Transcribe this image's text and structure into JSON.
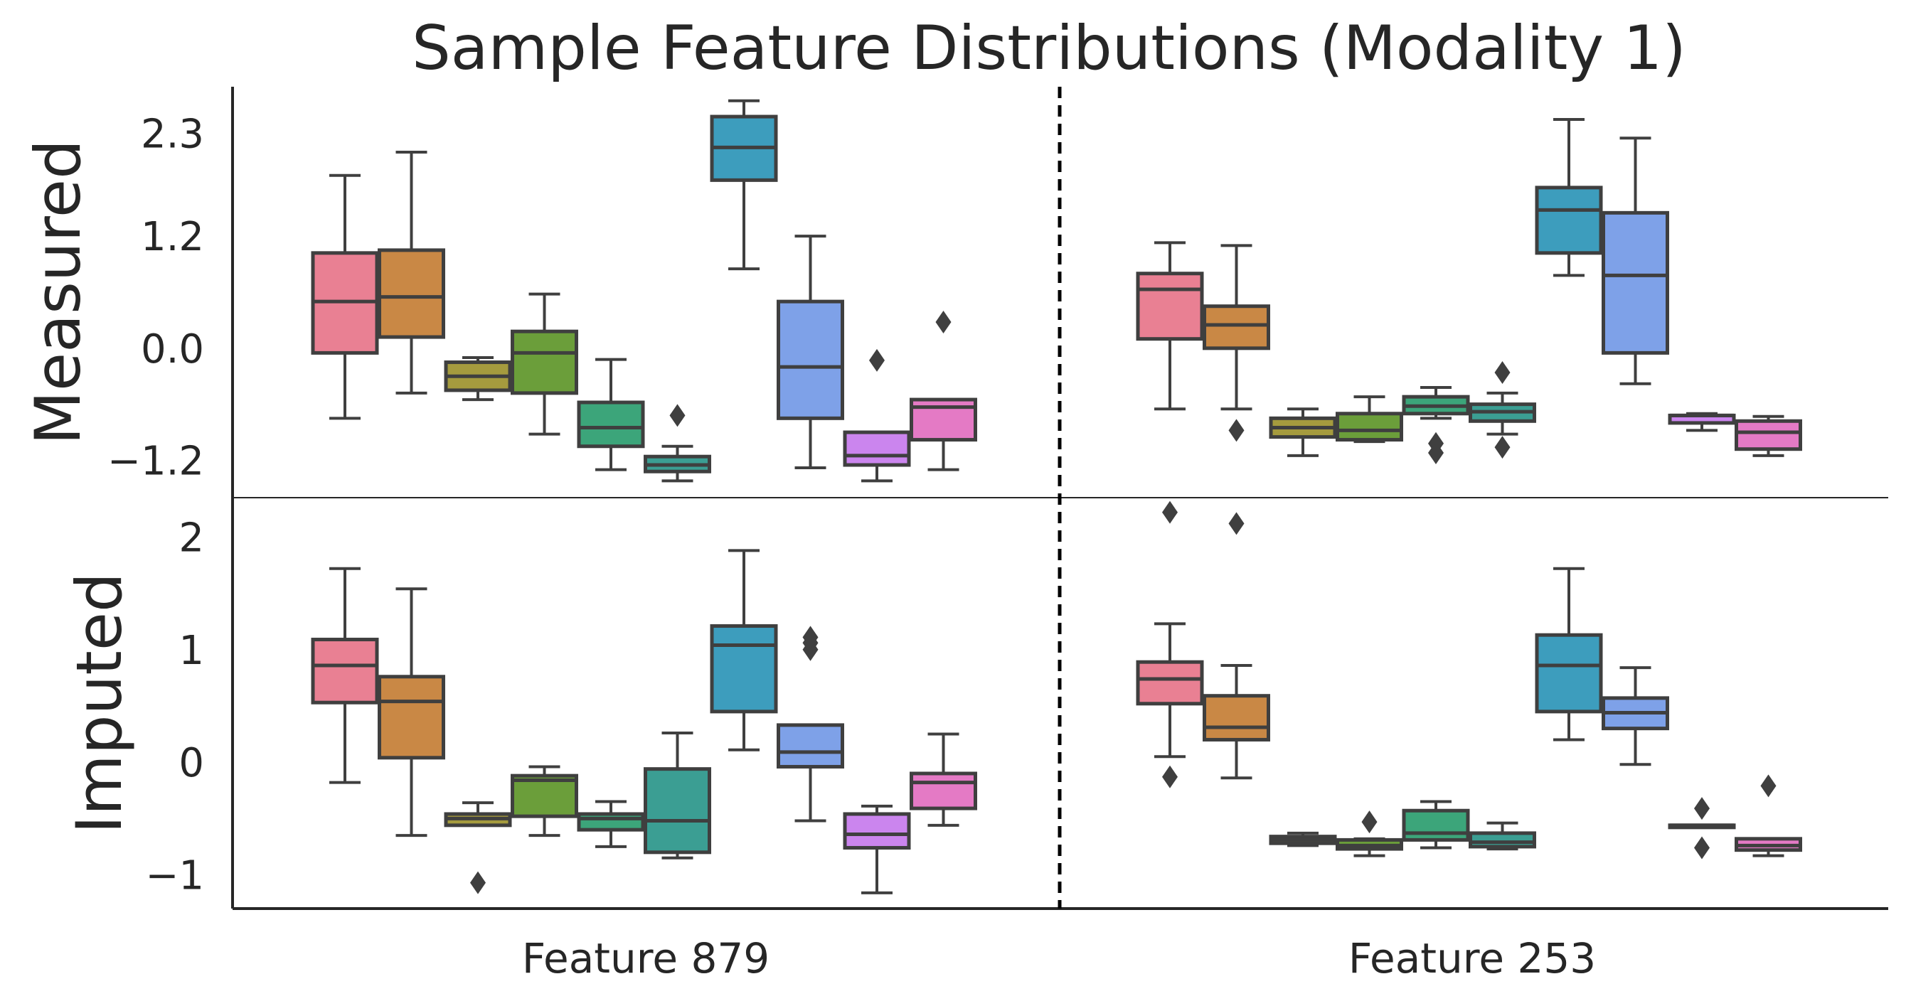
{
  "chart_data": {
    "type": "box",
    "title": "Sample Feature Distributions (Modality 1)",
    "categories": [
      "Feature 879",
      "Feature 253"
    ],
    "separator": "dashed vertical line between features",
    "grid": false,
    "box_colors": [
      "#e98093",
      "#c98845",
      "#a59b3e",
      "#6b9e3a",
      "#3ca57a",
      "#3b9e93",
      "#3d9dbd",
      "#7ea1e8",
      "#cb85ee",
      "#e47ac5"
    ],
    "panels": [
      {
        "ylabel": "Measured",
        "yticks": [
          2.3,
          1.2,
          0.0,
          -1.2
        ],
        "ytick_labels": [
          "2.3",
          "1.2",
          "0.0",
          "−1.2"
        ],
        "ylim": [
          -1.6,
          2.8
        ],
        "groups": [
          {
            "category": "Feature 879",
            "boxes": [
              {
                "whislo": -0.75,
                "q1": -0.05,
                "med": 0.5,
                "q3": 1.02,
                "whishi": 1.85,
                "fliers": []
              },
              {
                "whislo": -0.48,
                "q1": 0.12,
                "med": 0.55,
                "q3": 1.05,
                "whishi": 2.1,
                "fliers": []
              },
              {
                "whislo": -0.55,
                "q1": -0.45,
                "med": -0.3,
                "q3": -0.15,
                "whishi": -0.1,
                "fliers": []
              },
              {
                "whislo": -0.92,
                "q1": -0.48,
                "med": -0.05,
                "q3": 0.18,
                "whishi": 0.58,
                "fliers": []
              },
              {
                "whislo": -1.3,
                "q1": -1.05,
                "med": -0.85,
                "q3": -0.58,
                "whishi": -0.12,
                "fliers": []
              },
              {
                "whislo": -1.42,
                "q1": -1.32,
                "med": -1.25,
                "q3": -1.16,
                "whishi": -1.05,
                "fliers": [
                  -0.72
                ]
              },
              {
                "whislo": 0.85,
                "q1": 1.8,
                "med": 2.15,
                "q3": 2.48,
                "whishi": 2.65,
                "fliers": []
              },
              {
                "whislo": -1.28,
                "q1": -0.75,
                "med": -0.2,
                "q3": 0.5,
                "whishi": 1.2,
                "fliers": []
              },
              {
                "whislo": -1.42,
                "q1": -1.25,
                "med": -1.15,
                "q3": -0.9,
                "whishi": -0.9,
                "fliers": [
                  -0.13
                ]
              },
              {
                "whislo": -1.3,
                "q1": -0.98,
                "med": -0.63,
                "q3": -0.55,
                "whishi": -0.55,
                "fliers": [
                  0.28
                ]
              }
            ]
          },
          {
            "category": "Feature 253",
            "boxes": [
              {
                "whislo": -0.65,
                "q1": 0.1,
                "med": 0.63,
                "q3": 0.8,
                "whishi": 1.13,
                "fliers": []
              },
              {
                "whislo": -0.65,
                "q1": 0.0,
                "med": 0.25,
                "q3": 0.45,
                "whishi": 1.1,
                "fliers": [
                  -0.88
                ]
              },
              {
                "whislo": -1.15,
                "q1": -0.95,
                "med": -0.85,
                "q3": -0.75,
                "whishi": -0.65,
                "fliers": []
              },
              {
                "whislo": -1.0,
                "q1": -0.98,
                "med": -0.88,
                "q3": -0.7,
                "whishi": -0.52,
                "fliers": []
              },
              {
                "whislo": -0.75,
                "q1": -0.7,
                "med": -0.62,
                "q3": -0.52,
                "whishi": -0.42,
                "fliers": [
                  -1.02,
                  -1.12
                ]
              },
              {
                "whislo": -0.92,
                "q1": -0.78,
                "med": -0.68,
                "q3": -0.6,
                "whishi": -0.48,
                "fliers": [
                  -0.26,
                  -1.06
                ]
              },
              {
                "whislo": 0.78,
                "q1": 1.02,
                "med": 1.48,
                "q3": 1.72,
                "whishi": 2.45,
                "fliers": []
              },
              {
                "whislo": -0.38,
                "q1": -0.05,
                "med": 0.78,
                "q3": 1.45,
                "whishi": 2.25,
                "fliers": []
              },
              {
                "whislo": -0.88,
                "q1": -0.8,
                "med": -0.72,
                "q3": -0.72,
                "whishi": -0.7,
                "fliers": []
              },
              {
                "whislo": -1.15,
                "q1": -1.08,
                "med": -0.9,
                "q3": -0.78,
                "whishi": -0.73,
                "fliers": []
              }
            ]
          }
        ]
      },
      {
        "ylabel": "Imputed",
        "yticks": [
          2,
          1,
          0,
          -1
        ],
        "ytick_labels": [
          "2",
          "1",
          "0",
          "−1"
        ],
        "ylim": [
          -1.3,
          2.35
        ],
        "groups": [
          {
            "category": "Feature 879",
            "boxes": [
              {
                "whislo": -0.18,
                "q1": 0.53,
                "med": 0.86,
                "q3": 1.09,
                "whishi": 1.72,
                "fliers": []
              },
              {
                "whislo": -0.65,
                "q1": 0.04,
                "med": 0.54,
                "q3": 0.76,
                "whishi": 1.54,
                "fliers": []
              },
              {
                "whislo": -0.56,
                "q1": -0.56,
                "med": -0.5,
                "q3": -0.46,
                "whishi": -0.36,
                "fliers": [
                  -1.07
                ]
              },
              {
                "whislo": -0.65,
                "q1": -0.48,
                "med": -0.16,
                "q3": -0.12,
                "whishi": -0.04,
                "fliers": []
              },
              {
                "whislo": -0.75,
                "q1": -0.6,
                "med": -0.5,
                "q3": -0.46,
                "whishi": -0.35,
                "fliers": []
              },
              {
                "whislo": -0.85,
                "q1": -0.8,
                "med": -0.52,
                "q3": -0.06,
                "whishi": 0.26,
                "fliers": []
              },
              {
                "whislo": 0.11,
                "q1": 0.45,
                "med": 1.04,
                "q3": 1.21,
                "whishi": 1.88,
                "fliers": []
              },
              {
                "whislo": -0.52,
                "q1": -0.04,
                "med": 0.09,
                "q3": 0.33,
                "whishi": 0.33,
                "fliers": [
                  1.0,
                  1.06,
                  1.11
                ]
              },
              {
                "whislo": -1.16,
                "q1": -0.76,
                "med": -0.64,
                "q3": -0.46,
                "whishi": -0.39,
                "fliers": []
              },
              {
                "whislo": -0.56,
                "q1": -0.41,
                "med": -0.18,
                "q3": -0.1,
                "whishi": 0.25,
                "fliers": []
              }
            ]
          },
          {
            "category": "Feature 253",
            "boxes": [
              {
                "whislo": 0.05,
                "q1": 0.52,
                "med": 0.74,
                "q3": 0.89,
                "whishi": 1.23,
                "fliers": [
                  2.22,
                  -0.13
                ]
              },
              {
                "whislo": -0.14,
                "q1": 0.2,
                "med": 0.31,
                "q3": 0.59,
                "whishi": 0.86,
                "fliers": [
                  2.12
                ]
              },
              {
                "whislo": -0.74,
                "q1": -0.72,
                "med": -0.69,
                "q3": -0.66,
                "whishi": -0.63,
                "fliers": []
              },
              {
                "whislo": -0.83,
                "q1": -0.77,
                "med": -0.74,
                "q3": -0.69,
                "whishi": -0.68,
                "fliers": [
                  -0.53
                ]
              },
              {
                "whislo": -0.76,
                "q1": -0.69,
                "med": -0.63,
                "q3": -0.43,
                "whishi": -0.35,
                "fliers": []
              },
              {
                "whislo": -0.77,
                "q1": -0.75,
                "med": -0.71,
                "q3": -0.63,
                "whishi": -0.54,
                "fliers": []
              },
              {
                "whislo": 0.2,
                "q1": 0.45,
                "med": 0.86,
                "q3": 1.13,
                "whishi": 1.72,
                "fliers": []
              },
              {
                "whislo": -0.02,
                "q1": 0.3,
                "med": 0.44,
                "q3": 0.57,
                "whishi": 0.84,
                "fliers": []
              },
              {
                "whislo": -0.56,
                "q1": -0.56,
                "med": -0.56,
                "q3": -0.56,
                "whishi": -0.56,
                "fliers": [
                  -0.41,
                  -0.76
                ]
              },
              {
                "whislo": -0.83,
                "q1": -0.78,
                "med": -0.74,
                "q3": -0.68,
                "whishi": -0.68,
                "fliers": [
                  -0.21
                ]
              }
            ]
          }
        ]
      }
    ]
  }
}
